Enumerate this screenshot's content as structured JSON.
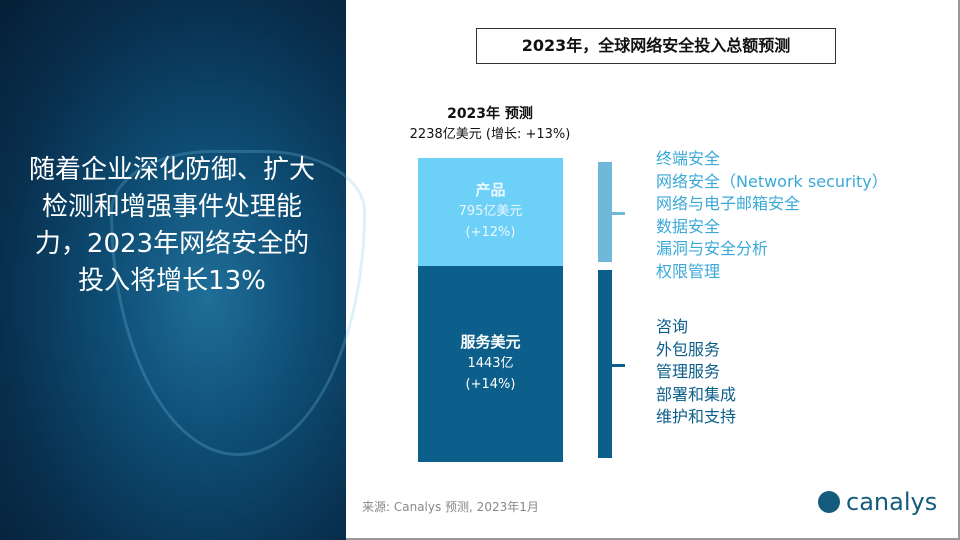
{
  "left_panel": {
    "headline": "随着企业深化防御、扩大检测和增强事件处理能力，2023年网络安全的投入将增长13%"
  },
  "title": "2023年，全球网络安全投入总额预测",
  "bar_header": {
    "line1": "2023年 预测",
    "line2": "2238亿美元 (增长: +13%)"
  },
  "colors": {
    "products": "#6dd0f7",
    "services": "#0b5f8a",
    "left_bg": "#0a3d5f"
  },
  "chart_data": {
    "type": "bar",
    "stacked": true,
    "segments": [
      {
        "name": "产品",
        "value": 795,
        "value_label": "795亿美元",
        "growth": "(+12%)"
      },
      {
        "name": "服务美元",
        "value": 1443,
        "value_label": "1443亿",
        "growth": "(+14%)"
      }
    ],
    "total": 2238
  },
  "products_list": [
    "终端安全",
    "网络安全（Network security）",
    "网络与电子邮箱安全",
    "数据安全",
    "漏洞与安全分析",
    "权限管理"
  ],
  "services_list": [
    "咨询",
    "外包服务",
    "管理服务",
    "部署和集成",
    "维护和支持"
  ],
  "source": "来源: Canalys 预测, 2023年1月",
  "logo": "canalys"
}
